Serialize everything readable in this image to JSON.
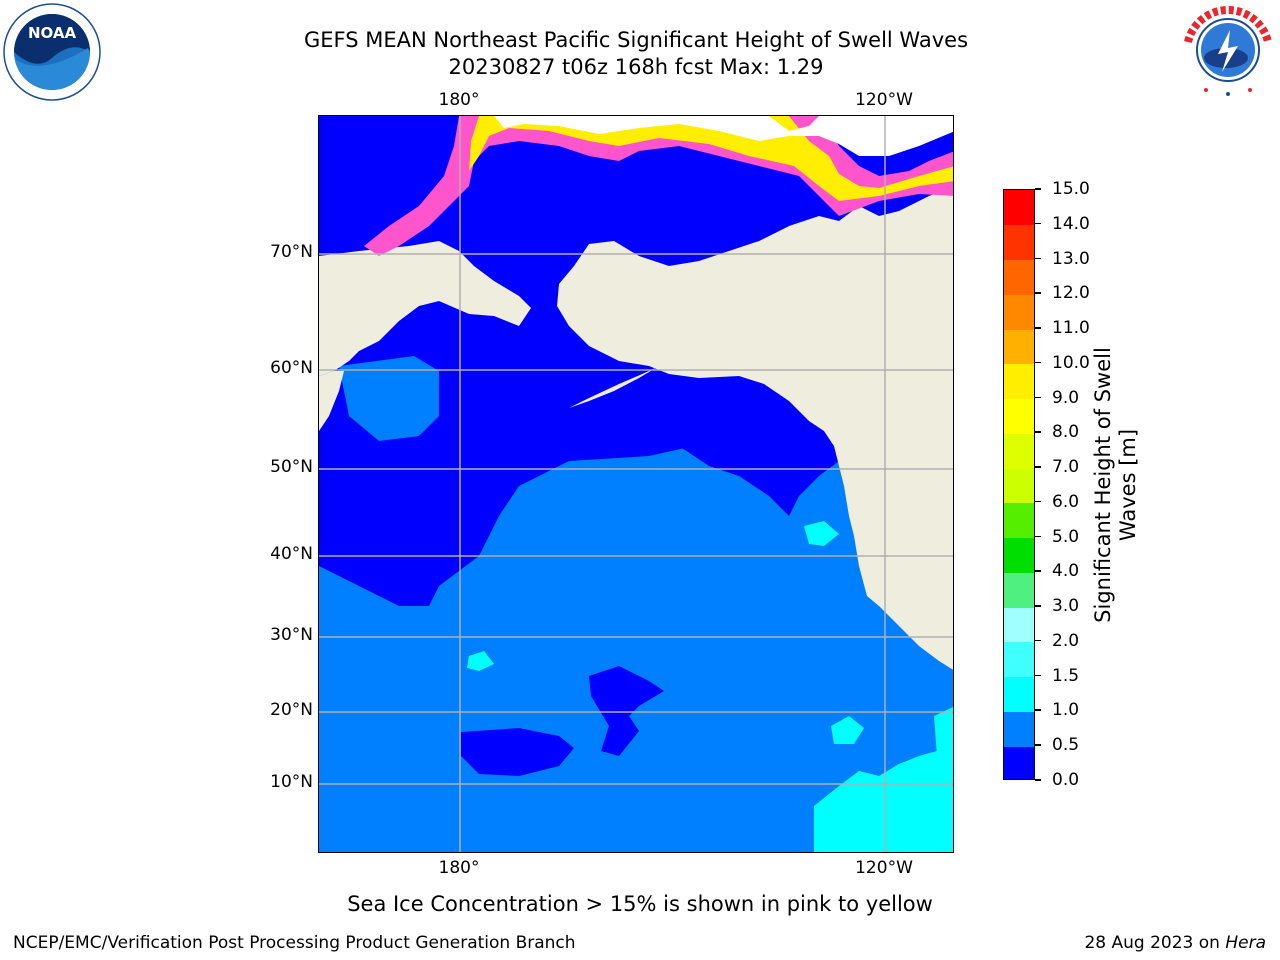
{
  "title": {
    "line1": "GEFS MEAN Northeast Pacific Significant Height of Swell Waves",
    "line2": "20230827 t06z 168h fcst   Max: 1.29"
  },
  "lon_labels": [
    "180°",
    "120°W"
  ],
  "lat_labels": [
    "70°N",
    "60°N",
    "50°N",
    "40°N",
    "30°N",
    "20°N",
    "10°N"
  ],
  "colorbar": {
    "title_line1": "Significant Height of Swell",
    "title_line2": "Waves [m]",
    "ticks": [
      "0.0",
      "0.5",
      "1.0",
      "1.5",
      "2.0",
      "3.0",
      "4.0",
      "5.0",
      "6.0",
      "7.0",
      "8.0",
      "9.0",
      "10.0",
      "11.0",
      "12.0",
      "13.0",
      "14.0",
      "15.0"
    ],
    "colors": [
      "#0000ff",
      "#0080ff",
      "#00ffff",
      "#40ffff",
      "#a0ffff",
      "#50f080",
      "#00dd00",
      "#55ee00",
      "#ccff00",
      "#ddff00",
      "#ffff00",
      "#ffee00",
      "#ffb000",
      "#ff8800",
      "#ff6600",
      "#ff3300",
      "#ff0000"
    ]
  },
  "map_colors": {
    "ocean_low": "#0000ff",
    "ocean_mid": "#0080ff",
    "ocean_high": "#00ffff",
    "land": "#efedde",
    "ice_pink": "#ff55cc",
    "ice_yellow": "#ffee00",
    "grid": "#b0b0b0"
  },
  "caption": "Sea Ice Concentration > 15% is shown in pink to yellow",
  "footer": {
    "left": "NCEP/EMC/Verification Post Processing Product Generation Branch",
    "date": "28 Aug 2023 on ",
    "host": "Hera"
  },
  "logos": {
    "noaa_text": "NOAA",
    "nws_text": "NATIONAL WEATHER SERVICE"
  }
}
